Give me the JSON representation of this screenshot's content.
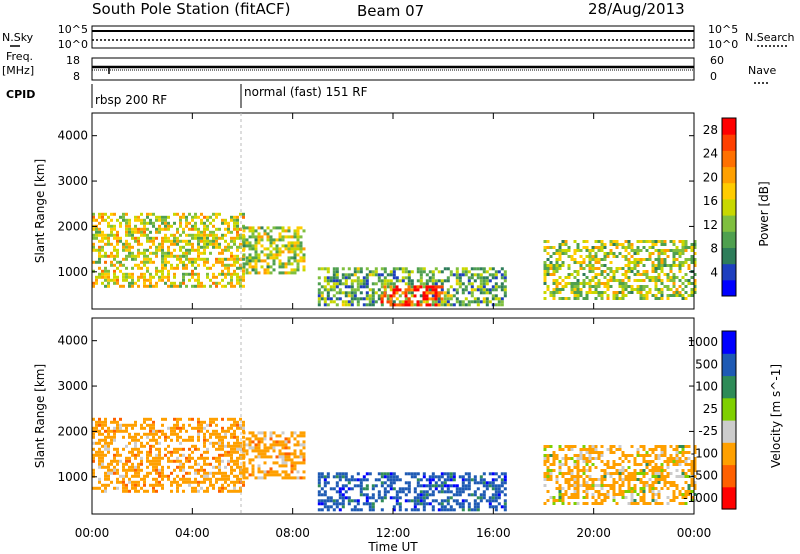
{
  "header": {
    "station": "South Pole Station (fitACF)",
    "beam": "Beam 07",
    "date": "28/Aug/2013"
  },
  "top_panels": {
    "nsky": {
      "label": "N.Sky",
      "ticks": [
        "10^5",
        "10^0"
      ]
    },
    "nsearch": {
      "label": "N.Search",
      "ticks": [
        "10^5",
        "10^0"
      ]
    },
    "freq": {
      "label_line1": "Freq.",
      "label_line2": "[MHz]",
      "ticks": [
        "18",
        "8"
      ]
    },
    "nave": {
      "label": "Nave",
      "ticks": [
        "60",
        "0"
      ]
    },
    "cpid": {
      "label": "CPID",
      "segments": [
        "rbsp 200 RF",
        "normal (fast) 151 RF"
      ]
    }
  },
  "colors": {
    "power_scale": [
      "#0000ff",
      "#1e3fbf",
      "#2e7d5a",
      "#4fa04f",
      "#7fbf3f",
      "#c8d800",
      "#ffcc00",
      "#ffa000",
      "#ff7000",
      "#ff4000",
      "#ff0000"
    ],
    "velocity_scale": [
      "#ff0000",
      "#ff6000",
      "#ffa000",
      "#cccccc",
      "#7fd000",
      "#2e8b57",
      "#1e5ab4",
      "#0000ff"
    ]
  },
  "chart_data": [
    {
      "type": "heatmap",
      "title": "",
      "xlabel": "",
      "ylabel": "Slant Range [km]",
      "x_unit": "hours UT",
      "xlim": [
        0,
        24
      ],
      "ylim": [
        180,
        4500
      ],
      "x_ticks": [
        0,
        4,
        8,
        12,
        16,
        20,
        24
      ],
      "y_ticks": [
        1000,
        2000,
        3000,
        4000
      ],
      "colorbar": {
        "label": "Power [dB]",
        "ticks": [
          "28",
          "24",
          "20",
          "16",
          "12",
          "8",
          "4"
        ],
        "range": [
          0,
          30
        ]
      },
      "regions": [
        {
          "t_start": 0.0,
          "t_end": 6.0,
          "range_min": 700,
          "range_max": 2300,
          "typical_power_db": 16
        },
        {
          "t_start": 6.0,
          "t_end": 8.5,
          "range_min": 1000,
          "range_max": 2000,
          "typical_power_db": 14
        },
        {
          "t_start": 9.0,
          "t_end": 16.5,
          "range_min": 250,
          "range_max": 1100,
          "typical_power_db": 10
        },
        {
          "t_start": 11.5,
          "t_end": 14.0,
          "range_min": 300,
          "range_max": 700,
          "typical_power_db": 28
        },
        {
          "t_start": 18.0,
          "t_end": 24.0,
          "range_min": 400,
          "range_max": 1700,
          "typical_power_db": 14
        }
      ]
    },
    {
      "type": "heatmap",
      "title": "",
      "xlabel": "Time UT",
      "ylabel": "Slant Range [km]",
      "x_unit": "hours UT",
      "xlim": [
        0,
        24
      ],
      "ylim": [
        180,
        4500
      ],
      "x_ticks": [
        0,
        4,
        8,
        12,
        16,
        20,
        24
      ],
      "x_tick_labels": [
        "00:00",
        "04:00",
        "08:00",
        "12:00",
        "16:00",
        "20:00",
        "00:00"
      ],
      "y_ticks": [
        1000,
        2000,
        3000,
        4000
      ],
      "colorbar": {
        "label": "Velocity [m s^-1]",
        "ticks": [
          "1000",
          "500",
          "100",
          "25",
          "-25",
          "-100",
          "-500",
          "-1000"
        ]
      },
      "regions": [
        {
          "t_start": 0.0,
          "t_end": 6.0,
          "range_min": 700,
          "range_max": 2300,
          "typical_velocity": -300
        },
        {
          "t_start": 6.0,
          "t_end": 8.5,
          "range_min": 1000,
          "range_max": 2000,
          "typical_velocity": -300
        },
        {
          "t_start": 9.0,
          "t_end": 16.5,
          "range_min": 250,
          "range_max": 1100,
          "typical_velocity": 300
        },
        {
          "t_start": 18.0,
          "t_end": 24.0,
          "range_min": 400,
          "range_max": 1700,
          "typical_velocity": -200
        }
      ]
    }
  ]
}
